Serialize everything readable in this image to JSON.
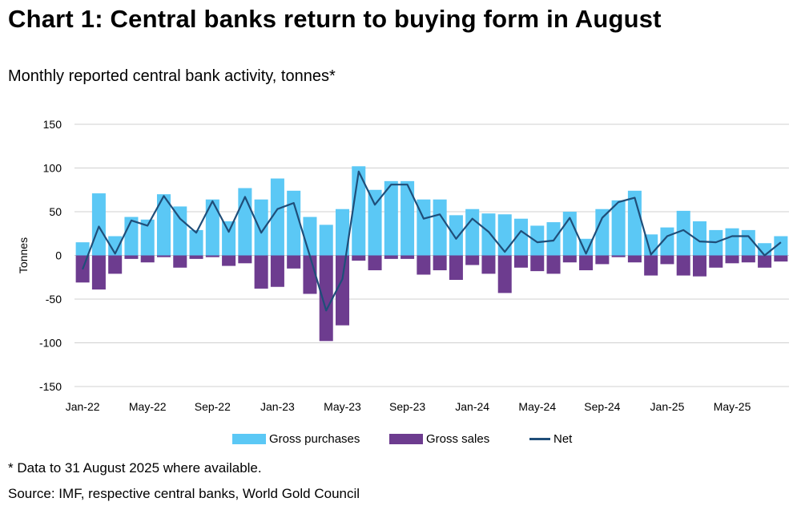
{
  "title": "Chart 1: Central banks return to buying form in August",
  "subtitle": "Monthly reported central bank activity, tonnes*",
  "footnote": "* Data to 31 August 2025 where available.",
  "source": "Source: IMF, respective central banks, World Gold Council",
  "colors": {
    "purchases": "#5bc8f5",
    "sales": "#6d3c8f",
    "net": "#1f4e79",
    "grid": "#d0d0d0"
  },
  "chart_data": {
    "type": "bar",
    "title": "Chart 1: Central banks return to buying form in August",
    "subtitle": "Monthly reported central bank activity, tonnes*",
    "ylabel": "Tonnes",
    "xlabel": "",
    "ylim": [
      -150,
      150
    ],
    "yticks": [
      150,
      100,
      50,
      0,
      -50,
      -100,
      -150
    ],
    "grid": true,
    "legend_position": "bottom",
    "categories": [
      "Jan-22",
      "Feb-22",
      "Mar-22",
      "Apr-22",
      "May-22",
      "Jun-22",
      "Jul-22",
      "Aug-22",
      "Sep-22",
      "Oct-22",
      "Nov-22",
      "Dec-22",
      "Jan-23",
      "Feb-23",
      "Mar-23",
      "Apr-23",
      "May-23",
      "Jun-23",
      "Jul-23",
      "Aug-23",
      "Sep-23",
      "Oct-23",
      "Nov-23",
      "Dec-23",
      "Jan-24",
      "Feb-24",
      "Mar-24",
      "Apr-24",
      "May-24",
      "Jun-24",
      "Jul-24",
      "Aug-24",
      "Sep-24",
      "Oct-24",
      "Nov-24",
      "Dec-24",
      "Jan-25",
      "Feb-25",
      "Mar-25",
      "Apr-25",
      "May-25",
      "Jun-25",
      "Jul-25",
      "Aug-25"
    ],
    "tick_labels": [
      "Jan-22",
      "May-22",
      "Sep-22",
      "Jan-23",
      "May-23",
      "Sep-23",
      "Jan-24",
      "May-24",
      "Sep-24",
      "Jan-25",
      "May-25"
    ],
    "series": [
      {
        "name": "Gross purchases",
        "type": "bar",
        "values": [
          15,
          71,
          22,
          44,
          41,
          70,
          56,
          29,
          64,
          39,
          77,
          64,
          88,
          74,
          44,
          35,
          53,
          102,
          75,
          85,
          85,
          64,
          64,
          46,
          53,
          48,
          47,
          42,
          34,
          38,
          50,
          19,
          53,
          63,
          74,
          24,
          32,
          51,
          39,
          29,
          31,
          29,
          14,
          22
        ]
      },
      {
        "name": "Gross sales",
        "type": "bar",
        "values": [
          -31,
          -39,
          -21,
          -4,
          -8,
          -2,
          -14,
          -4,
          -2,
          -12,
          -9,
          -38,
          -36,
          -15,
          -44,
          -98,
          -80,
          -6,
          -17,
          -4,
          -4,
          -22,
          -17,
          -28,
          -11,
          -21,
          -43,
          -14,
          -18,
          -21,
          -8,
          -17,
          -10,
          -2,
          -8,
          -23,
          -10,
          -23,
          -24,
          -14,
          -9,
          -8,
          -14,
          -7
        ]
      },
      {
        "name": "Net",
        "type": "line",
        "values": [
          -16,
          33,
          2,
          40,
          34,
          68,
          42,
          26,
          62,
          27,
          67,
          26,
          53,
          60,
          -1,
          -63,
          -27,
          96,
          58,
          81,
          81,
          42,
          47,
          19,
          42,
          27,
          4,
          28,
          15,
          17,
          43,
          2,
          43,
          61,
          66,
          1,
          22,
          29,
          16,
          15,
          22,
          22,
          0,
          15
        ]
      }
    ]
  }
}
